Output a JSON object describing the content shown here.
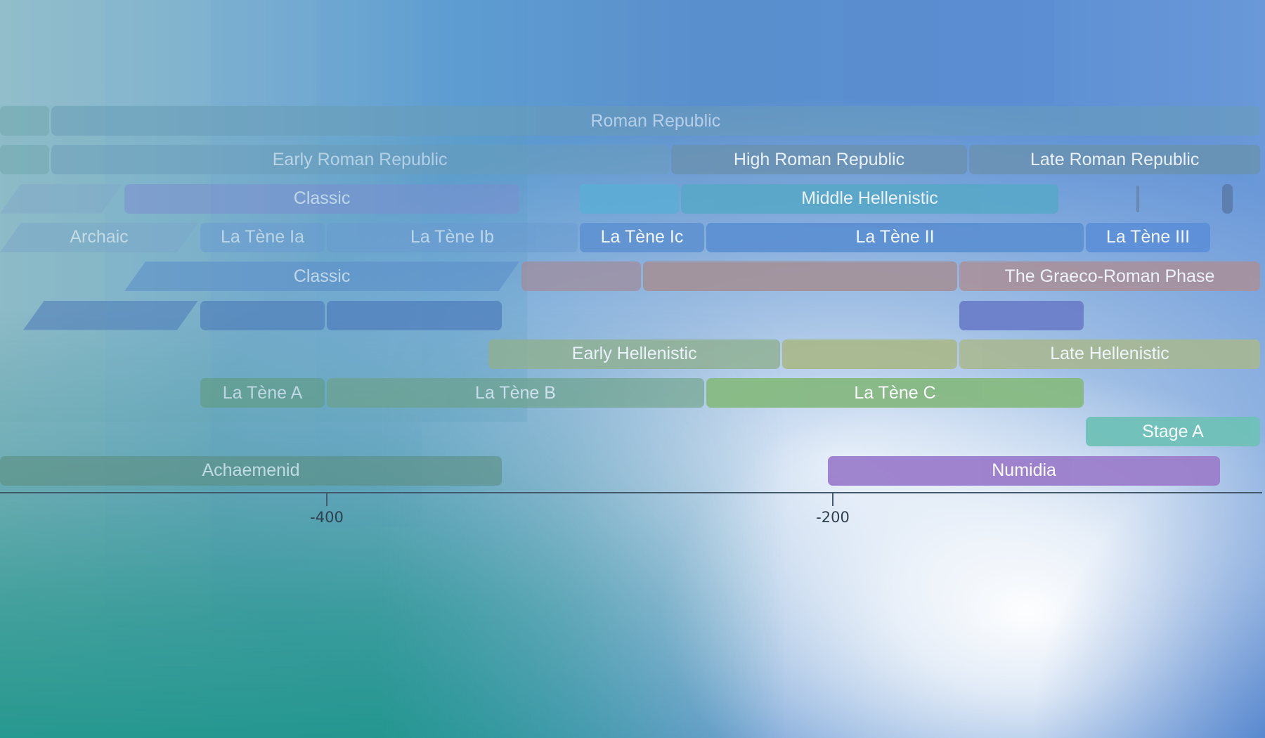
{
  "timeline": {
    "axis": {
      "ticks": [
        {
          "label": "-400",
          "year": -400
        },
        {
          "label": "-200",
          "year": -200
        }
      ]
    },
    "bands": [
      {
        "label": "Roman Republic",
        "start": -509,
        "end": -27,
        "row": 0,
        "color": "#6a9cb8",
        "opacity": 0.55
      },
      {
        "label": "",
        "start": -600,
        "end": -509,
        "row": 0,
        "color": "#6aa3a8",
        "opacity": 0.45
      },
      {
        "label": "",
        "start": -600,
        "end": -509,
        "row": 1,
        "color": "#6aa3a8",
        "opacity": 0.45
      },
      {
        "label": "Early Roman Republic",
        "start": -509,
        "end": -264,
        "row": 1,
        "color": "#6a9cb8",
        "opacity": 0.5
      },
      {
        "label": "High Roman Republic",
        "start": -264,
        "end": -146,
        "row": 1,
        "color": "#6a92b2",
        "opacity": 0.85
      },
      {
        "label": "Late Roman Republic",
        "start": -146,
        "end": -27,
        "row": 1,
        "color": "#6a92b2",
        "opacity": 0.85
      },
      {
        "label": "",
        "start": -600,
        "end": -480,
        "row": 2,
        "color": "#7fa8c8",
        "opacity": 0.5,
        "skew": true
      },
      {
        "label": "Classic",
        "start": -480,
        "end": -323,
        "row": 2,
        "color": "#7b8ed0",
        "opacity": 0.55
      },
      {
        "label": "",
        "start": -300,
        "end": -260,
        "row": 2,
        "color": "#5aaed6",
        "opacity": 0.85
      },
      {
        "label": "Middle Hellenistic",
        "start": -260,
        "end": -110,
        "row": 2,
        "color": "#56a8c8",
        "opacity": 0.85
      },
      {
        "label": "",
        "start": -80,
        "end": -79,
        "row": 2,
        "color": "#6a84a8",
        "opacity": 0.85,
        "tick": true
      },
      {
        "label": "",
        "start": -46,
        "end": -41,
        "row": 2,
        "color": "#5a7caa",
        "opacity": 0.9
      },
      {
        "label": "Archaic",
        "start": -600,
        "end": -450,
        "row": 3,
        "color": "#7aa6c8",
        "opacity": 0.5,
        "skew": true
      },
      {
        "label": "La Tène Ia",
        "start": -450,
        "end": -400,
        "row": 3,
        "color": "#6a9ad0",
        "opacity": 0.5
      },
      {
        "label": "La Tène Ib",
        "start": -400,
        "end": -300,
        "row": 3,
        "color": "#6a9ad0",
        "opacity": 0.55
      },
      {
        "label": "La Tène Ic",
        "start": -300,
        "end": -250,
        "row": 3,
        "color": "#5f92d2",
        "opacity": 0.9
      },
      {
        "label": "La Tène II",
        "start": -250,
        "end": -100,
        "row": 3,
        "color": "#5b8fd2",
        "opacity": 0.9
      },
      {
        "label": "La Tène III",
        "start": -100,
        "end": -50,
        "row": 3,
        "color": "#5b8fd8",
        "opacity": 0.9
      },
      {
        "label": "Classic",
        "start": -480,
        "end": -323,
        "row": 4,
        "color": "#5a8cc8",
        "opacity": 0.55,
        "skew": true
      },
      {
        "label": "",
        "start": -323,
        "end": -275,
        "row": 4,
        "color": "#a08c9c",
        "opacity": 0.75
      },
      {
        "label": "",
        "start": -275,
        "end": -150,
        "row": 4,
        "color": "#a58e94",
        "opacity": 0.85
      },
      {
        "label": "The Graeco-Roman Phase",
        "start": -150,
        "end": -30,
        "row": 4,
        "color": "#aa8f98",
        "opacity": 0.85
      },
      {
        "label": "",
        "start": -520,
        "end": -450,
        "row": 5,
        "color": "#4a78b8",
        "opacity": 0.55,
        "skew": true
      },
      {
        "label": "",
        "start": -450,
        "end": -400,
        "row": 5,
        "color": "#4a78b8",
        "opacity": 0.6
      },
      {
        "label": "",
        "start": -400,
        "end": -330,
        "row": 5,
        "color": "#4a78b8",
        "opacity": 0.65
      },
      {
        "label": "",
        "start": -150,
        "end": -100,
        "row": 5,
        "color": "#6a7ec8",
        "opacity": 0.95
      },
      {
        "label": "Early Hellenistic",
        "start": -336,
        "end": -220,
        "row": 6,
        "color": "#8fb090",
        "opacity": 0.8
      },
      {
        "label": "",
        "start": -220,
        "end": -150,
        "row": 6,
        "color": "#a8b888",
        "opacity": 0.9
      },
      {
        "label": "Late Hellenistic",
        "start": -150,
        "end": -27,
        "row": 6,
        "color": "#a9b88e",
        "opacity": 0.85
      },
      {
        "label": "La Tène A",
        "start": -450,
        "end": -400,
        "row": 7,
        "color": "#5f9a78",
        "opacity": 0.55
      },
      {
        "label": "La Tène B",
        "start": -400,
        "end": -250,
        "row": 7,
        "color": "#6aa080",
        "opacity": 0.6
      },
      {
        "label": "La Tène C",
        "start": -250,
        "end": -100,
        "row": 7,
        "color": "#86b982",
        "opacity": 0.95
      },
      {
        "label": "Stage A",
        "start": -100,
        "end": -30,
        "row": 8,
        "color": "#6fc1b8",
        "opacity": 0.95
      },
      {
        "label": "Achaemenid",
        "start": -530,
        "end": -330,
        "row": 9,
        "color": "#5b8e80",
        "opacity": 0.6
      },
      {
        "label": "Numidia",
        "start": -202,
        "end": -46,
        "row": 9,
        "color": "#9b7dcb",
        "opacity": 0.95
      }
    ]
  }
}
